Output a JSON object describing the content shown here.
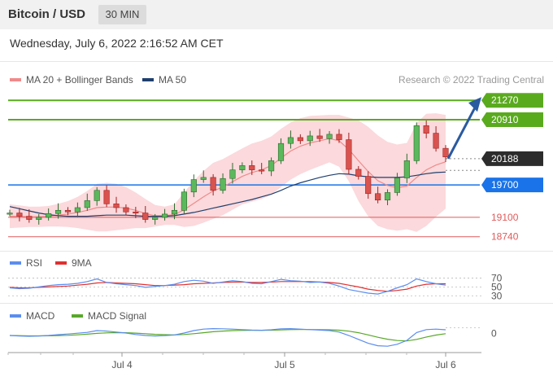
{
  "header": {
    "title": "Bitcoin / USD",
    "timeframe": "30 MIN"
  },
  "subtitle": "Wednesday, July 6, 2022 2:16:52 AM CET",
  "copyright": "Research © 2022 Trading Central",
  "colors": {
    "bollinger": "#f08a8a",
    "ma50": "#1f3f6e",
    "target_level": "#5aaa1e",
    "current_price": "#2c2c2c",
    "pivot": "#1a73e8",
    "support": "#e05a5a",
    "rsi": "#5b8def",
    "rsi_9ma": "#e03030",
    "macd": "#5b8def",
    "macd_signal": "#58a82a",
    "arrow": "#2a5aa0"
  },
  "legend": {
    "bollinger": "MA 20 + Bollinger Bands",
    "ma50": "MA 50"
  },
  "rsi_legend": {
    "rsi": "RSI",
    "ma": "9MA"
  },
  "macd_legend": {
    "macd": "MACD",
    "signal": "MACD Signal"
  },
  "chart_data": {
    "type": "candlestick",
    "x_labels": [
      "Jul 4",
      "Jul 5",
      "Jul 6"
    ],
    "ylim": [
      18600,
      21500
    ],
    "levels": [
      {
        "label": "21270",
        "value": 21270,
        "kind": "target"
      },
      {
        "label": "20910",
        "value": 20910,
        "kind": "target"
      },
      {
        "label": "20188",
        "value": 20188,
        "kind": "current"
      },
      {
        "label": "19700",
        "value": 19700,
        "kind": "pivot"
      },
      {
        "label": "19100",
        "value": 19100,
        "kind": "support"
      },
      {
        "label": "18740",
        "value": 18740,
        "kind": "support"
      }
    ],
    "price": [
      19180,
      19120,
      19060,
      19100,
      19170,
      19230,
      19200,
      19280,
      19410,
      19600,
      19350,
      19280,
      19200,
      19180,
      19060,
      19100,
      19160,
      19230,
      19570,
      19800,
      19840,
      19600,
      19820,
      19980,
      20060,
      19980,
      19960,
      20150,
      20470,
      20580,
      20520,
      20610,
      20560,
      20640,
      20540,
      19990,
      19860,
      19540,
      19420,
      19560,
      19830,
      20150,
      20800,
      20660,
      20380,
      20220
    ],
    "ma20": [
      19120,
      19120,
      19110,
      19110,
      19120,
      19140,
      19160,
      19190,
      19230,
      19280,
      19290,
      19290,
      19270,
      19230,
      19170,
      19130,
      19130,
      19150,
      19240,
      19360,
      19480,
      19590,
      19660,
      19760,
      19860,
      19930,
      19980,
      20060,
      20200,
      20330,
      20420,
      20480,
      20520,
      20560,
      20520,
      20360,
      20150,
      19950,
      19780,
      19690,
      19650,
      19680,
      19840,
      19980,
      20070,
      20130
    ],
    "bb_upper": [
      19340,
      19320,
      19300,
      19300,
      19310,
      19350,
      19400,
      19480,
      19590,
      19720,
      19740,
      19720,
      19660,
      19560,
      19440,
      19330,
      19300,
      19340,
      19560,
      19780,
      19960,
      20110,
      20180,
      20280,
      20380,
      20470,
      20520,
      20600,
      20740,
      20860,
      20940,
      20980,
      20990,
      21000,
      21000,
      20950,
      20900,
      20780,
      20620,
      20500,
      20450,
      20480,
      20850,
      21020,
      21030,
      21000
    ],
    "bb_lower": [
      18900,
      18910,
      18920,
      18920,
      18930,
      18930,
      18920,
      18900,
      18870,
      18840,
      18840,
      18860,
      18880,
      18900,
      18900,
      18930,
      18960,
      18960,
      18920,
      18940,
      19000,
      19070,
      19140,
      19240,
      19340,
      19390,
      19440,
      19520,
      19660,
      19800,
      19900,
      19980,
      20050,
      20120,
      20040,
      19770,
      19400,
      19120,
      18940,
      18880,
      18850,
      18880,
      18830,
      18940,
      19110,
      19260
    ],
    "ma50": [
      19300,
      19260,
      19220,
      19180,
      19150,
      19130,
      19120,
      19120,
      19120,
      19130,
      19140,
      19140,
      19140,
      19130,
      19120,
      19120,
      19120,
      19130,
      19160,
      19190,
      19230,
      19270,
      19310,
      19350,
      19390,
      19430,
      19480,
      19530,
      19600,
      19680,
      19740,
      19790,
      19840,
      19880,
      19910,
      19900,
      19870,
      19850,
      19840,
      19840,
      19840,
      19850,
      19880,
      19910,
      19930,
      19940
    ],
    "rsi": {
      "ticks": [
        "70",
        "50",
        "30"
      ],
      "ylim": [
        25,
        80
      ],
      "rsi": [
        48,
        46,
        47,
        50,
        53,
        55,
        56,
        58,
        62,
        68,
        60,
        57,
        55,
        53,
        49,
        51,
        53,
        56,
        62,
        65,
        63,
        58,
        61,
        64,
        62,
        58,
        57,
        62,
        67,
        64,
        63,
        60,
        61,
        58,
        52,
        44,
        40,
        36,
        34,
        40,
        48,
        55,
        68,
        62,
        57,
        54
      ],
      "ma9": [
        49,
        48,
        48,
        49,
        50,
        51,
        52,
        54,
        56,
        59,
        60,
        59,
        58,
        57,
        55,
        53,
        53,
        54,
        55,
        57,
        58,
        59,
        60,
        61,
        61,
        60,
        60,
        61,
        62,
        62,
        62,
        62,
        61,
        60,
        58,
        54,
        50,
        45,
        42,
        40,
        42,
        45,
        52,
        56,
        57,
        57
      ]
    },
    "macd": {
      "ticks": [
        "0"
      ],
      "ylim": [
        -170,
        80
      ],
      "macd": [
        -20,
        -25,
        -28,
        -25,
        -20,
        -12,
        -5,
        3,
        12,
        30,
        25,
        15,
        5,
        -10,
        -20,
        -25,
        -22,
        -15,
        5,
        30,
        45,
        50,
        48,
        45,
        40,
        35,
        33,
        38,
        48,
        50,
        45,
        40,
        35,
        30,
        15,
        -20,
        -60,
        -100,
        -125,
        -130,
        -110,
        -70,
        10,
        40,
        45,
        38
      ],
      "signal": [
        -20,
        -22,
        -24,
        -24,
        -23,
        -21,
        -18,
        -13,
        -7,
        2,
        7,
        9,
        8,
        4,
        -2,
        -8,
        -12,
        -14,
        -10,
        -2,
        8,
        18,
        25,
        30,
        32,
        33,
        33,
        34,
        37,
        40,
        41,
        41,
        40,
        38,
        34,
        24,
        8,
        -14,
        -38,
        -58,
        -72,
        -76,
        -60,
        -36,
        -16,
        -2
      ]
    }
  }
}
